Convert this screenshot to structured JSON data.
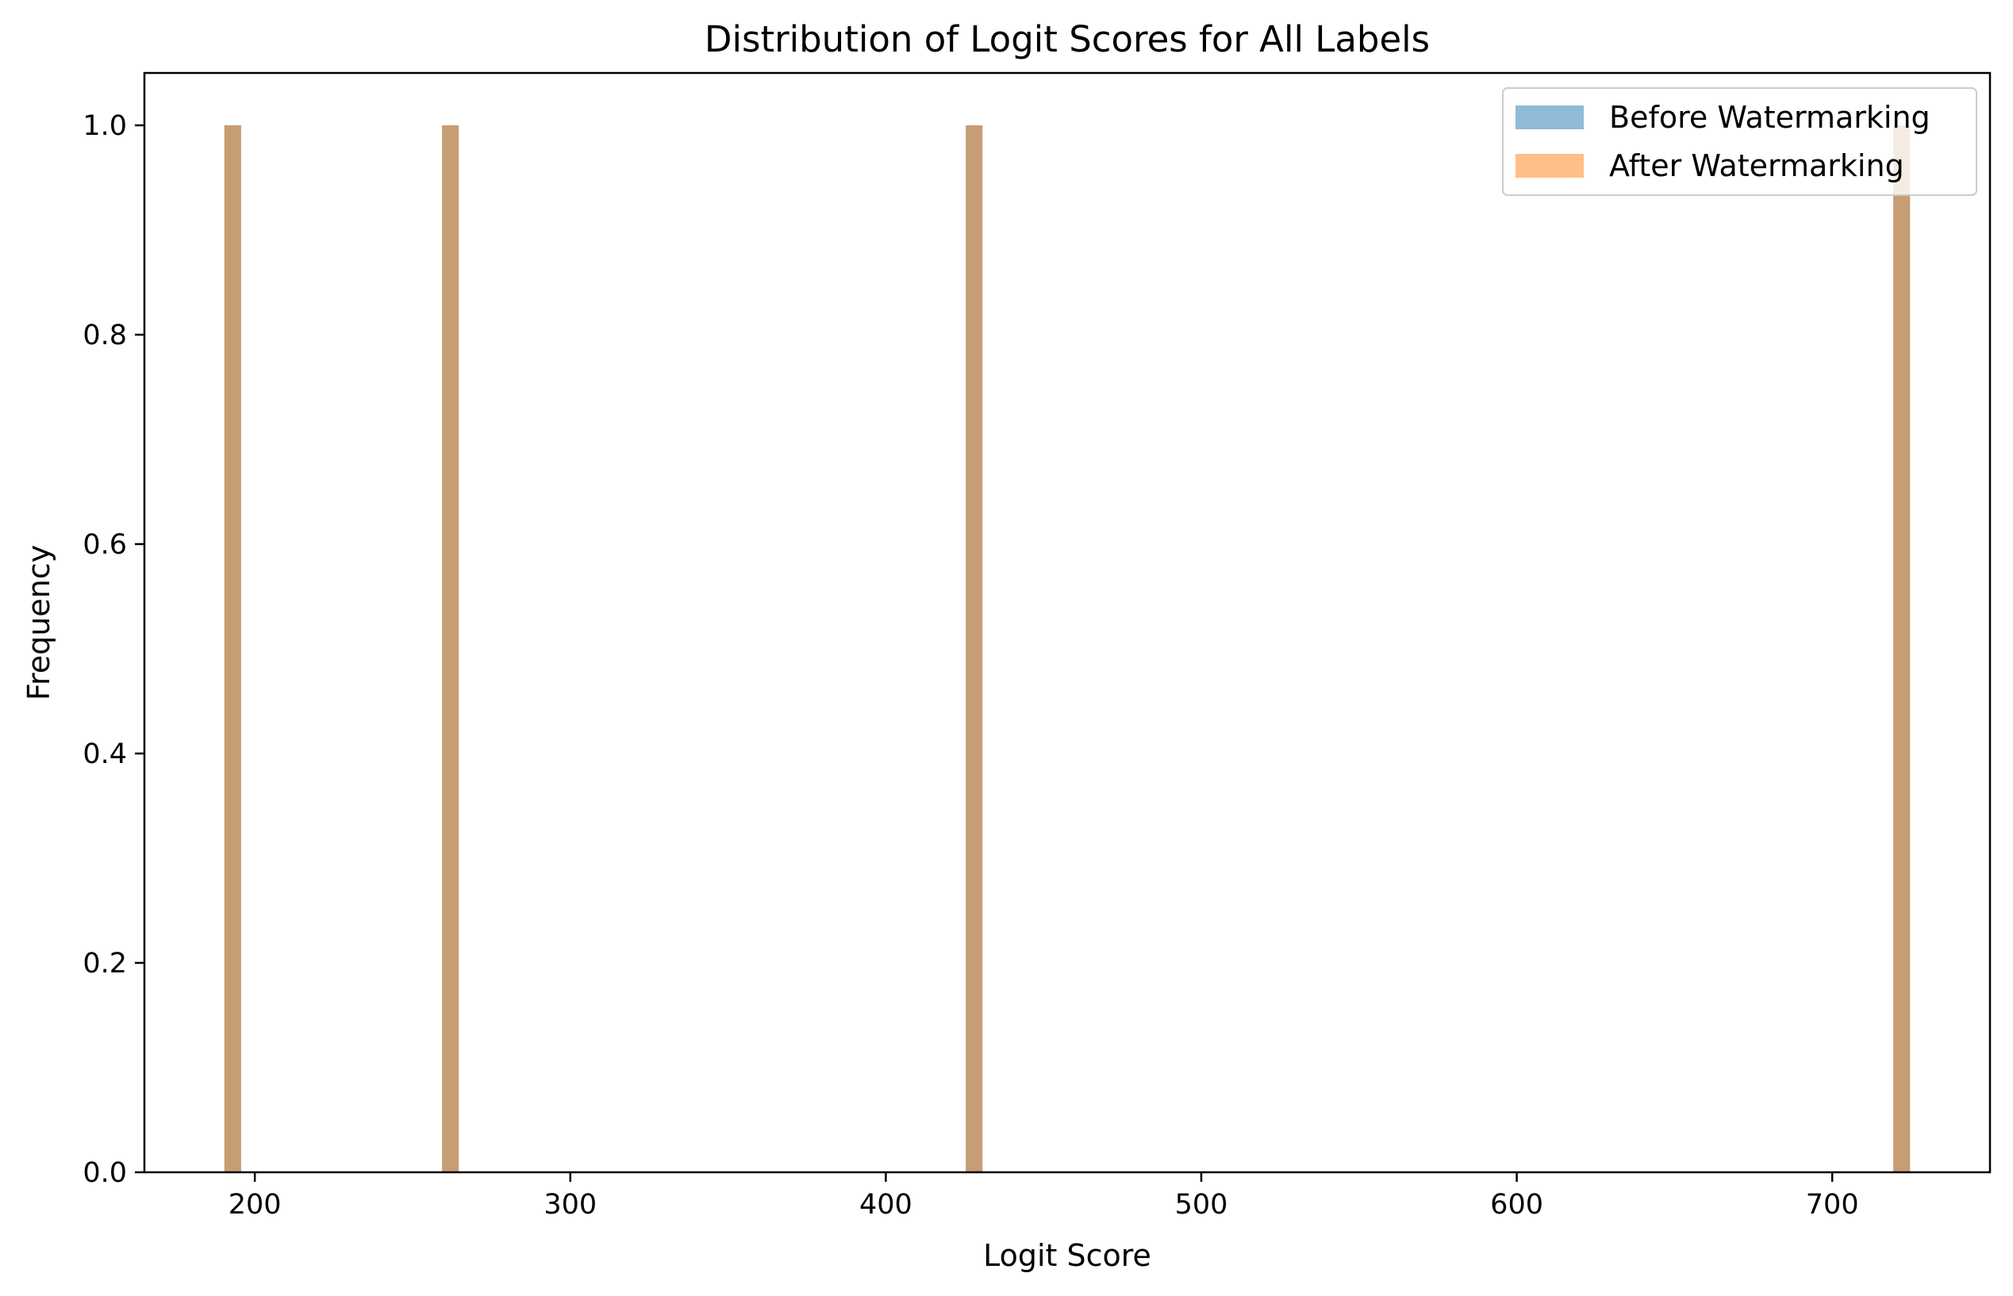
{
  "chart_data": {
    "type": "bar",
    "title": "Distribution of Logit Scores for All Labels",
    "xlabel": "Logit Score",
    "ylabel": "Frequency",
    "xlim": [
      165,
      750
    ],
    "ylim": [
      0,
      1.05
    ],
    "xticks": [
      200,
      300,
      400,
      500,
      600,
      700
    ],
    "yticks": [
      0.0,
      0.2,
      0.4,
      0.6,
      0.8,
      1.0
    ],
    "x_tick_labels": [
      "200",
      "300",
      "400",
      "500",
      "600",
      "700"
    ],
    "y_tick_labels": [
      "0.0",
      "0.2",
      "0.4",
      "0.6",
      "0.8",
      "1.0"
    ],
    "bin_width": 5.3,
    "grid": false,
    "legend_position": "top-right",
    "series": [
      {
        "name": "Before Watermarking",
        "color": "#1f77b4",
        "opacity": 0.5,
        "bins": [
          {
            "x": 193,
            "value": 1.0
          },
          {
            "x": 262,
            "value": 1.0
          },
          {
            "x": 428,
            "value": 1.0
          },
          {
            "x": 722,
            "value": 1.0
          }
        ]
      },
      {
        "name": "After Watermarking",
        "color": "#ff7f0e",
        "opacity": 0.5,
        "bins": [
          {
            "x": 193,
            "value": 1.0
          },
          {
            "x": 262,
            "value": 1.0
          },
          {
            "x": 428,
            "value": 1.0
          },
          {
            "x": 722,
            "value": 1.0
          }
        ]
      }
    ]
  }
}
